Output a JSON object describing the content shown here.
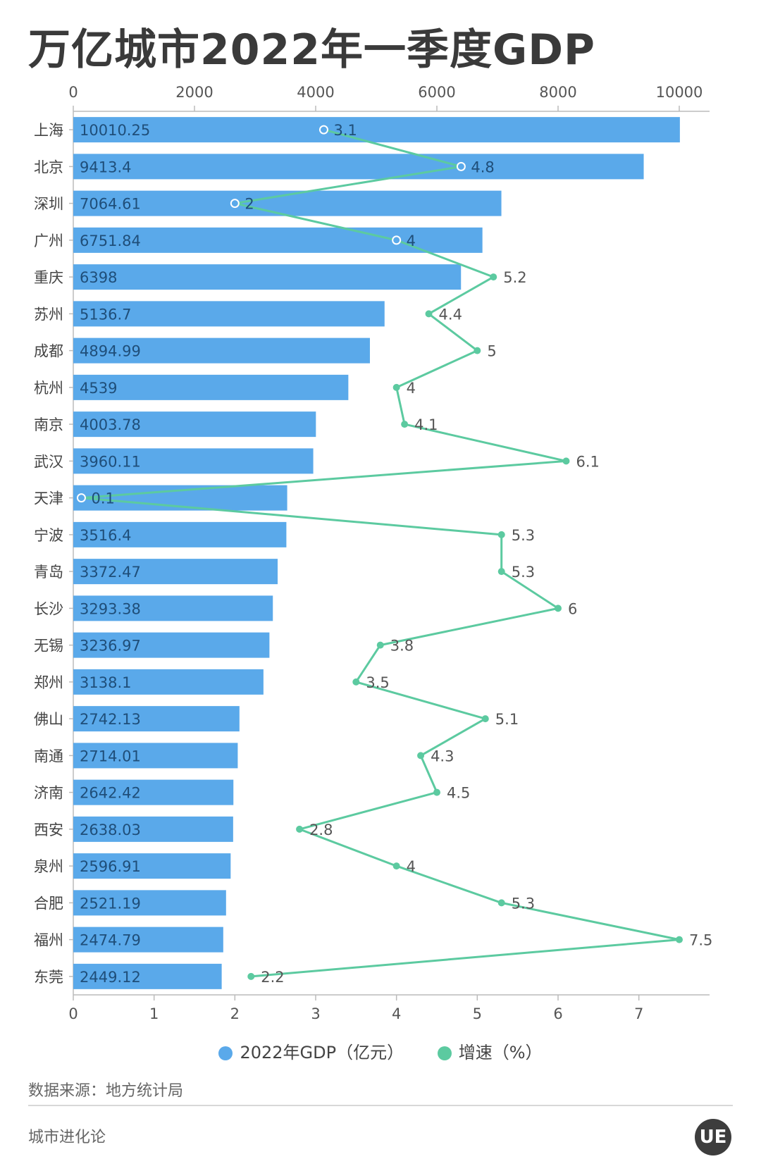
{
  "title": "万亿城市2022年一季度GDP",
  "source": "数据来源：地方统计局",
  "brand": "城市进化论",
  "logo_text": "UE",
  "colors": {
    "bar": "#5aa9ea",
    "line": "#5ccaa0",
    "bar_label": "#1f4e79",
    "growth_label": "#555555",
    "axis": "#bbbbbb",
    "axis_label": "#555555"
  },
  "chart_data": {
    "type": "bar",
    "orientation": "horizontal",
    "categories": [
      "上海",
      "北京",
      "深圳",
      "广州",
      "重庆",
      "苏州",
      "成都",
      "杭州",
      "南京",
      "武汉",
      "天津",
      "宁波",
      "青岛",
      "长沙",
      "无锡",
      "郑州",
      "佛山",
      "南通",
      "济南",
      "西安",
      "泉州",
      "合肥",
      "福州",
      "东莞"
    ],
    "series": [
      {
        "name": "2022年GDP（亿元）",
        "type": "bar",
        "axis": "top",
        "values": [
          10010.25,
          9413.4,
          7064.61,
          6751.84,
          6398,
          5136.7,
          4894.99,
          4539,
          4003.78,
          3960.11,
          3530,
          3516.4,
          3372.47,
          3293.38,
          3236.97,
          3138.1,
          2742.13,
          2714.01,
          2642.42,
          2638.03,
          2596.91,
          2521.19,
          2474.79,
          2449.12
        ],
        "labels": [
          "10010.25",
          "9413.4",
          "7064.61",
          "6751.84",
          "6398",
          "5136.7",
          "4894.99",
          "4539",
          "4003.78",
          "3960.11",
          "",
          "3516.4",
          "3372.47",
          "3293.38",
          "3236.97",
          "3138.1",
          "2742.13",
          "2714.01",
          "2642.42",
          "2638.03",
          "2596.91",
          "2521.19",
          "2474.79",
          "2449.12"
        ]
      },
      {
        "name": "增速（%）",
        "type": "line",
        "axis": "bottom",
        "values": [
          3.1,
          4.8,
          2,
          4,
          5.2,
          4.4,
          5,
          4,
          4.1,
          6.1,
          0.1,
          5.3,
          5.3,
          6,
          3.8,
          3.5,
          5.1,
          4.3,
          4.5,
          2.8,
          4,
          5.3,
          7.5,
          2.2
        ],
        "labels": [
          "3.1",
          "4.8",
          "2",
          "4",
          "5.2",
          "4.4",
          "5",
          "4",
          "4.1",
          "6.1",
          "0.1",
          "5.3",
          "5.3",
          "6",
          "3.8",
          "3.5",
          "5.1",
          "4.3",
          "4.5",
          "2.8",
          "4",
          "5.3",
          "7.5",
          "2.2"
        ]
      }
    ],
    "top_axis": {
      "range": [
        0,
        10500
      ],
      "ticks": [
        "0",
        "2000",
        "4000",
        "6000",
        "8000",
        "10000"
      ],
      "tick_values": [
        0,
        2000,
        4000,
        6000,
        8000,
        10000
      ]
    },
    "bottom_axis": {
      "range": [
        0,
        7.875
      ],
      "ticks": [
        "0",
        "1",
        "2",
        "3",
        "4",
        "5",
        "6",
        "7"
      ],
      "tick_values": [
        0,
        1,
        2,
        3,
        4,
        5,
        6,
        7
      ]
    },
    "legend": [
      "2022年GDP（亿元）",
      "增速（%）"
    ],
    "legend_position": "bottom",
    "grid": false
  }
}
